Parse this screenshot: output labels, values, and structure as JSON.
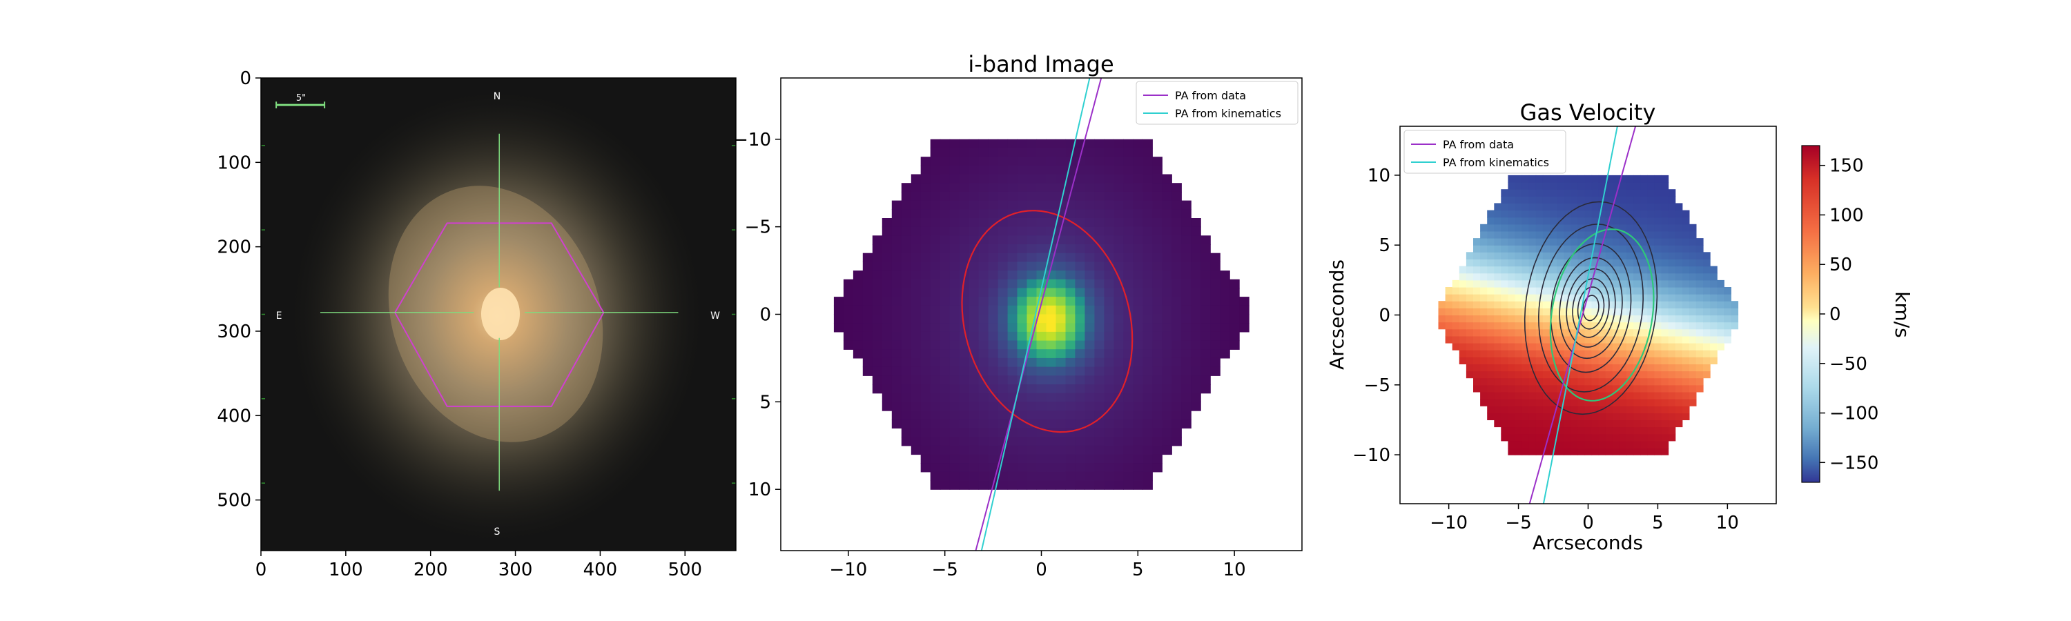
{
  "chart_data": [
    {
      "type": "image",
      "panel": "optical-image",
      "title": "",
      "xticks": [
        0,
        100,
        200,
        300,
        400,
        500
      ],
      "yticks": [
        0,
        100,
        200,
        300,
        400,
        500
      ],
      "xlim": [
        0,
        560
      ],
      "ylim": [
        560,
        0
      ],
      "compass": {
        "north": "N",
        "south": "S",
        "east": "E",
        "west": "W"
      },
      "scale_bar_label": "5\"",
      "hexagon": {
        "center": [
          281,
          278
        ],
        "radius_x": 123,
        "top_bottom": [
          172,
          389
        ]
      },
      "crosshair": {
        "x": 281,
        "y": 278,
        "x_extent": [
          70,
          492
        ],
        "y_extent": [
          66,
          489
        ]
      },
      "colors": {
        "hexagon": "#d040d0",
        "crosshair": "#7fdc7f",
        "scale_bar": "#7fdc7f"
      }
    },
    {
      "type": "heatmap",
      "panel": "i-band",
      "title": "i-band Image",
      "xticks": [
        -10,
        -5,
        0,
        5,
        10
      ],
      "yticks": [
        -10,
        -5,
        0,
        5,
        10
      ],
      "xlim": [
        -13.5,
        13.5
      ],
      "ylim": [
        -13.5,
        13.5
      ],
      "y_inverted": true,
      "colormap": "viridis",
      "hex_extent": {
        "x": [
          -11,
          11
        ],
        "y": [
          -10,
          10
        ]
      },
      "ellipse": {
        "center": [
          0.3,
          0.4
        ],
        "semi_major": 6.4,
        "semi_minor": 4.3,
        "tilt_deg": 12,
        "color": "#e0202a"
      },
      "legend": [
        {
          "label": "PA from data",
          "color": "#9b30c8"
        },
        {
          "label": "PA from kinematics",
          "color": "#30d0d0"
        }
      ],
      "pa_lines": [
        {
          "name": "PA from data",
          "points": [
            [
              -3.4,
              13.5
            ],
            [
              3.1,
              -13.5
            ]
          ]
        },
        {
          "name": "PA from kinematics",
          "points": [
            [
              -3.1,
              13.5
            ],
            [
              2.5,
              -13.5
            ]
          ]
        }
      ]
    },
    {
      "type": "heatmap",
      "panel": "gas-velocity",
      "title": "Gas Velocity",
      "xlabel": "Arcseconds",
      "ylabel": "Arcseconds",
      "xticks": [
        -10,
        -5,
        0,
        5,
        10
      ],
      "yticks": [
        -10,
        -5,
        0,
        5,
        10
      ],
      "xlim": [
        -13.5,
        13.5
      ],
      "ylim": [
        -13.5,
        13.5
      ],
      "colormap": "RdYlBu_r",
      "colorbar": {
        "label": "km/s",
        "range": [
          -170,
          170
        ],
        "ticks": [
          150,
          100,
          50,
          0,
          -50,
          -100,
          -150
        ]
      },
      "hex_extent": {
        "x": [
          -11,
          11
        ],
        "y": [
          -10,
          10
        ]
      },
      "contours": {
        "color": "#2a2a3a",
        "center": [
          0.2,
          0.5
        ],
        "levels": [
          0.9,
          1.5,
          2.1,
          2.8,
          3.6,
          4.6,
          6.0,
          7.6
        ]
      },
      "ellipse": {
        "center": [
          1.0,
          0.0
        ],
        "semi_major": 6.2,
        "semi_minor": 3.6,
        "tilt_deg": 10,
        "color": "#2ec87a"
      },
      "legend": [
        {
          "label": "PA from data",
          "color": "#9b30c8"
        },
        {
          "label": "PA from kinematics",
          "color": "#30d0d0"
        }
      ],
      "pa_lines": [
        {
          "name": "PA from data",
          "points": [
            [
              -4.2,
              -13.5
            ],
            [
              3.4,
              13.5
            ]
          ]
        },
        {
          "name": "PA from kinematics",
          "points": [
            [
              -3.2,
              -13.5
            ],
            [
              2.1,
              13.5
            ]
          ]
        }
      ]
    }
  ]
}
